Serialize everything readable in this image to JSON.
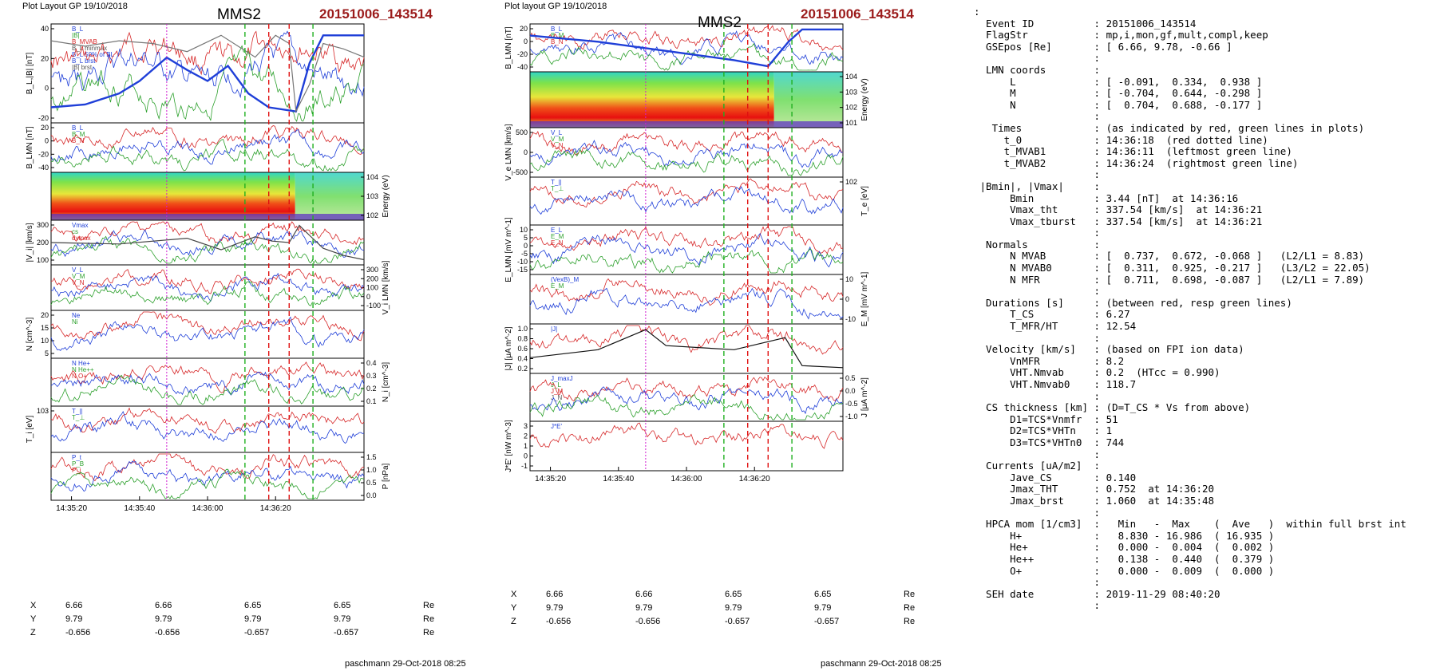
{
  "figures": [
    {
      "header": "Plot Layout GP 19/10/2018",
      "title": "MMS2",
      "event": "20151006_143514",
      "footer": "paschmann 29-Oct-2018 08:25",
      "panels": [
        {
          "ylabel": "B_L,|B| [nT]",
          "ylabel_right": "",
          "ticks_left": [
            "40",
            "20",
            "0",
            "-20"
          ],
          "ticks_right": [],
          "legend": [
            "B_L",
            "|B|",
            "B_MVAB",
            "B_L minmax",
            "B_L 50% of BL",
            "B_L brst",
            "|B| brst"
          ],
          "spectrogram": false
        },
        {
          "ylabel": "B_LMN [nT]",
          "ylabel_right": "",
          "ticks_left": [
            "20",
            "0",
            "-20",
            "-40"
          ],
          "ticks_right": [],
          "legend": [
            "B_L",
            "B_M",
            "B_N"
          ],
          "spectrogram": false
        },
        {
          "ylabel": "",
          "ylabel_right": "Energy (eV)",
          "ticks_left": [],
          "ticks_right": [
            "10^4",
            "10^3",
            "10^2"
          ],
          "legend": [],
          "spectrogram": true
        },
        {
          "ylabel": "|V_i| [km/s]",
          "ylabel_right": "",
          "ticks_left": [
            "300",
            "200",
            "100"
          ],
          "ticks_right": [],
          "legend": [
            "Vmax",
            "cs",
            "dvmax"
          ],
          "spectrogram": false
        },
        {
          "ylabel": "",
          "ylabel_right": "V_i LMN [km/s]",
          "ticks_left": [],
          "ticks_right": [
            "300",
            "200",
            "100",
            "0",
            "-100"
          ],
          "legend": [
            "V_L",
            "V_M",
            "V_N"
          ],
          "spectrogram": false
        },
        {
          "ylabel": "N [cm^-3]",
          "ylabel_right": "",
          "ticks_left": [
            "20",
            "15",
            "10",
            "5"
          ],
          "ticks_right": [],
          "legend": [
            "Ne",
            "Ni"
          ],
          "spectrogram": false
        },
        {
          "ylabel": "",
          "ylabel_right": "N_i [cm^-3]",
          "ticks_left": [],
          "ticks_right": [
            "0.4",
            "0.3",
            "0.2",
            "0.1"
          ],
          "legend": [
            "N He+",
            "N He++",
            "N O+"
          ],
          "spectrogram": false
        },
        {
          "ylabel": "T_i [eV]",
          "ylabel_right": "",
          "ticks_left": [
            "10^3"
          ],
          "ticks_right": [],
          "legend": [
            "T_||",
            "T_⊥"
          ],
          "spectrogram": false
        },
        {
          "ylabel": "",
          "ylabel_right": "P [nPa]",
          "ticks_left": [],
          "ticks_right": [
            "1.5",
            "1.0",
            "0.5",
            "0.0"
          ],
          "legend": [
            "P_t",
            "P_B",
            "P_i"
          ],
          "spectrogram": false
        }
      ],
      "xticks": [
        "14:35:20",
        "14:35:40",
        "14:36:00",
        "14:36:20"
      ],
      "ephemeris": [
        {
          "label": "X",
          "values": [
            "6.66",
            "6.66",
            "6.65",
            "6.65"
          ],
          "unit": "Re"
        },
        {
          "label": "Y",
          "values": [
            "9.79",
            "9.79",
            "9.79",
            "9.79"
          ],
          "unit": "Re"
        },
        {
          "label": "Z",
          "values": [
            "-0.656",
            "-0.656",
            "-0.657",
            "-0.657"
          ],
          "unit": "Re"
        }
      ]
    },
    {
      "header": "Plot layout GP 19/10/2018",
      "title": "MMS2",
      "event": "20151006_143514",
      "footer": "paschmann 29-Oct-2018 08:25",
      "panels": [
        {
          "ylabel": "B_LMN [nT]",
          "ylabel_right": "",
          "ticks_left": [
            "20",
            "0",
            "-20",
            "-40"
          ],
          "ticks_right": [],
          "legend": [
            "B_L",
            "B_M",
            "B_N"
          ],
          "spectrogram": false
        },
        {
          "ylabel": "",
          "ylabel_right": "Energy (eV)",
          "ticks_left": [],
          "ticks_right": [
            "10^4",
            "10^3",
            "10^2",
            "10^1"
          ],
          "legend": [],
          "spectrogram": true
        },
        {
          "ylabel": "V_e LMN [km/s]",
          "ylabel_right": "",
          "ticks_left": [
            "500",
            "0",
            "-500"
          ],
          "ticks_right": [],
          "legend": [
            "V_L",
            "V_M",
            "V_N"
          ],
          "spectrogram": false
        },
        {
          "ylabel": "",
          "ylabel_right": "T_e [eV]",
          "ticks_left": [],
          "ticks_right": [
            "10^2"
          ],
          "legend": [
            "T_||",
            "T_⊥"
          ],
          "spectrogram": false
        },
        {
          "ylabel": "E_LMN [mV m^-1]",
          "ylabel_right": "",
          "ticks_left": [
            "10",
            "5",
            "0",
            "-5",
            "-10",
            "-15"
          ],
          "ticks_right": [],
          "legend": [
            "E_L",
            "E_M",
            "E_N"
          ],
          "spectrogram": false
        },
        {
          "ylabel": "",
          "ylabel_right": "E_M [mV m^-1]",
          "ticks_left": [],
          "ticks_right": [
            "10",
            "0",
            "-10"
          ],
          "legend": [
            "(VexB)_M",
            "E_M"
          ],
          "spectrogram": false
        },
        {
          "ylabel": "|J| [μA m^-2]",
          "ylabel_right": "",
          "ticks_left": [
            "1.0",
            "0.8",
            "0.6",
            "0.4",
            "0.2"
          ],
          "ticks_right": [],
          "legend": [
            "|J|"
          ],
          "spectrogram": false
        },
        {
          "ylabel": "",
          "ylabel_right": "J [μA m^-2]",
          "ticks_left": [],
          "ticks_right": [
            "0.5",
            "0.0",
            "-0.5",
            "-1.0"
          ],
          "legend": [
            "J_maxJ",
            "J_L",
            "J_M",
            "J_N"
          ],
          "spectrogram": false
        },
        {
          "ylabel": "J*E' [nW m^-3]",
          "ylabel_right": "",
          "ticks_left": [
            "3",
            "2",
            "1",
            "0",
            "-1"
          ],
          "ticks_right": [],
          "legend": [
            "J*E'"
          ],
          "spectrogram": false
        }
      ],
      "xticks": [
        "14:35:20",
        "14:35:40",
        "14:36:00",
        "14:36:20"
      ],
      "ephemeris": [
        {
          "label": "X",
          "values": [
            "6.66",
            "6.66",
            "6.65",
            "6.65"
          ],
          "unit": "Re"
        },
        {
          "label": "Y",
          "values": [
            "9.79",
            "9.79",
            "9.79",
            "9.79"
          ],
          "unit": "Re"
        },
        {
          "label": "Z",
          "values": [
            "-0.656",
            "-0.656",
            "-0.657",
            "-0.657"
          ],
          "unit": "Re"
        }
      ]
    }
  ],
  "info_lines": [
    ":",
    "  Event ID          : 20151006_143514",
    "  FlagStr           : mp,i,mon,gf,mult,compl,keep",
    "  GSEpos [Re]       : [ 6.66, 9.78, -0.66 ]",
    "                    :",
    "  LMN coords        :",
    "      L             : [ -0.091,  0.334,  0.938 ]",
    "      M             : [ -0.704,  0.644, -0.298 ]",
    "      N             : [  0.704,  0.688, -0.177 ]",
    "                    :",
    "   Times            : (as indicated by red, green lines in plots)",
    "     t_0            : 14:36:18  (red dotted line)",
    "     t_MVAB1        : 14:36:11  (leftmost green line)",
    "     t_MVAB2        : 14:36:24  (rightmost green line)",
    "                    :",
    " |Bmin|, |Vmax|     :",
    "      Bmin          : 3.44 [nT]  at 14:36:16",
    "      Vmax_tht      : 337.54 [km/s]  at 14:36:21",
    "      Vmax_tburst   : 337.54 [km/s]  at 14:36:21",
    "                    :",
    "  Normals           :",
    "      N MVAB        : [  0.737,  0.672, -0.068 ]   (L2/L1 = 8.83)",
    "      N MVAB0       : [  0.311,  0.925, -0.217 ]   (L3/L2 = 22.05)",
    "      N MFR         : [  0.711,  0.698, -0.087 ]   (L2/L1 = 7.89)",
    "                    :",
    "  Durations [s]     : (between red, resp green lines)",
    "      T_CS          : 6.27",
    "      T_MFR/HT      : 12.54",
    "                    :",
    "  Velocity [km/s]   : (based on FPI ion data)",
    "      VnMFR         : 8.2",
    "      VHT.Nmvab     : 0.2  (HTcc = 0.990)",
    "      VHT.Nmvab0    : 118.7",
    "                    :",
    "  CS thickness [km] : (D=T_CS * Vs from above)",
    "      D1=TCS*Vnmfr  : 51",
    "      D2=TCS*VHTn   : 1",
    "      D3=TCS*VHTn0  : 744",
    "                    :",
    "  Currents [uA/m2]  :",
    "      Jave_CS       : 0.140",
    "      Jmax_THT      : 0.752  at 14:36:20",
    "      Jmax_brst     : 1.060  at 14:35:48",
    "                    :",
    "  HPCA mom [1/cm3]  :   Min   -  Max    (  Ave   )  within full brst int",
    "      H+            :   8.830 - 16.986  ( 16.935 )",
    "      He+           :   0.000 -  0.004  (  0.002 )",
    "      He++          :   0.138 -  0.440  (  0.379 )",
    "      O+            :   0.000 -  0.009  (  0.000 )",
    "                    :",
    "  SEH date          : 2019-11-29 08:40:20",
    "                    :"
  ],
  "chart_data": [
    {
      "type": "line",
      "title": "MMS2",
      "x_range": [
        "14:35:14",
        "14:36:35"
      ],
      "xticks": [
        "14:35:20",
        "14:35:40",
        "14:36:00",
        "14:36:20"
      ],
      "markers": {
        "t_0": "14:36:18",
        "t_MVAB1": "14:36:11",
        "t_MVAB2": "14:36:24",
        "magenta": "14:35:48"
      },
      "series": [
        {
          "name": "B_L",
          "panel": 0,
          "x_sec": [
            0,
            10,
            20,
            26,
            34,
            40,
            46,
            52,
            58,
            64,
            72,
            76,
            80,
            86,
            92
          ],
          "y": [
            -22,
            -20,
            -12,
            -3,
            14,
            5,
            -3,
            8,
            -12,
            -22,
            -25,
            10,
            30,
            30,
            30
          ],
          "color": "#1f3fd8"
        },
        {
          "name": "|B|",
          "panel": 0,
          "x_sec": [
            0,
            10,
            20,
            30,
            40,
            50,
            60,
            66,
            70,
            72,
            76,
            80,
            86,
            92
          ],
          "y": [
            36,
            34,
            36,
            35,
            32,
            38,
            30,
            38,
            35,
            10,
            20,
            35,
            33,
            30
          ],
          "color": "#777777"
        },
        {
          "name": "|V_i|",
          "panel": 3,
          "x_sec": [
            0,
            20,
            40,
            50,
            60,
            65,
            70,
            73,
            76,
            80,
            86,
            92
          ],
          "y": [
            200,
            190,
            230,
            150,
            240,
            210,
            200,
            320,
            250,
            160,
            110,
            80
          ],
          "color": "#444444"
        }
      ]
    },
    {
      "type": "line",
      "title": "MMS2",
      "x_range": [
        "14:35:14",
        "14:36:35"
      ],
      "xticks": [
        "14:35:20",
        "14:35:40",
        "14:36:00",
        "14:36:20"
      ],
      "markers": {
        "t_0": "14:36:18",
        "t_MVAB1": "14:36:11",
        "t_MVAB2": "14:36:24",
        "magenta": "14:35:48"
      },
      "series": [
        {
          "name": "B_L",
          "panel": 0,
          "x_sec": [
            0,
            20,
            40,
            60,
            70,
            76,
            80,
            92
          ],
          "y": [
            20,
            10,
            -5,
            -20,
            -30,
            10,
            30,
            30
          ],
          "color": "#1f3fd8"
        },
        {
          "name": "|J|",
          "panel": 6,
          "x_sec": [
            0,
            20,
            34,
            40,
            60,
            75,
            80,
            92
          ],
          "y": [
            0.3,
            0.5,
            1.0,
            0.6,
            0.5,
            0.8,
            0.1,
            0.05
          ],
          "color": "#111111"
        }
      ]
    }
  ]
}
